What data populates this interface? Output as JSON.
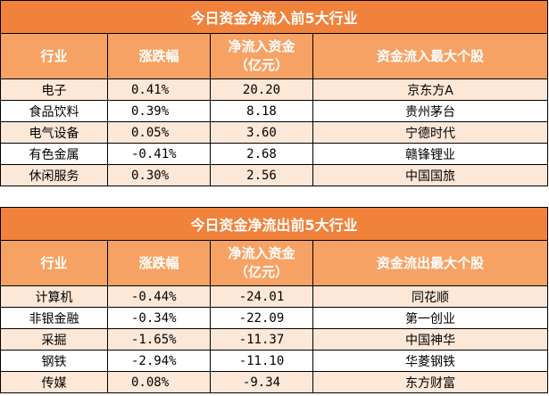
{
  "inflow": {
    "title": "今日资金净流入前5大行业",
    "headers": [
      "行业",
      "涨跌幅",
      "净流入资金\n（亿元）",
      "资金流入最大个股"
    ],
    "rows": [
      {
        "industry": "电子",
        "change": "0.41%",
        "amount": "20.20",
        "stock": "京东方A"
      },
      {
        "industry": "食品饮料",
        "change": "0.39%",
        "amount": "8.18",
        "stock": "贵州茅台"
      },
      {
        "industry": "电气设备",
        "change": "0.05%",
        "amount": "3.60",
        "stock": "宁德时代"
      },
      {
        "industry": "有色金属",
        "change": "-0.41%",
        "amount": "2.68",
        "stock": "赣锋锂业"
      },
      {
        "industry": "休闲服务",
        "change": "0.30%",
        "amount": "2.56",
        "stock": "中国国旅"
      }
    ]
  },
  "outflow": {
    "title": "今日资金净流出前5大行业",
    "headers": [
      "行业",
      "涨跌幅",
      "净流入资金\n（亿元）",
      "资金流出最大个股"
    ],
    "rows": [
      {
        "industry": "计算机",
        "change": "-0.44%",
        "amount": "-24.01",
        "stock": "同花顺"
      },
      {
        "industry": "非银金融",
        "change": "-0.34%",
        "amount": "-22.09",
        "stock": "第一创业"
      },
      {
        "industry": "采掘",
        "change": "-1.65%",
        "amount": "-11.37",
        "stock": "中国神华"
      },
      {
        "industry": "钢铁",
        "change": "-2.94%",
        "amount": "-11.10",
        "stock": "华菱钢铁"
      },
      {
        "industry": "传媒",
        "change": "0.08%",
        "amount": "-9.34",
        "stock": "东方财富"
      }
    ]
  },
  "colors": {
    "title_bg": "#f0823b",
    "header_bg": "#f7a265",
    "alt_row_bg": "#fde7d7"
  }
}
